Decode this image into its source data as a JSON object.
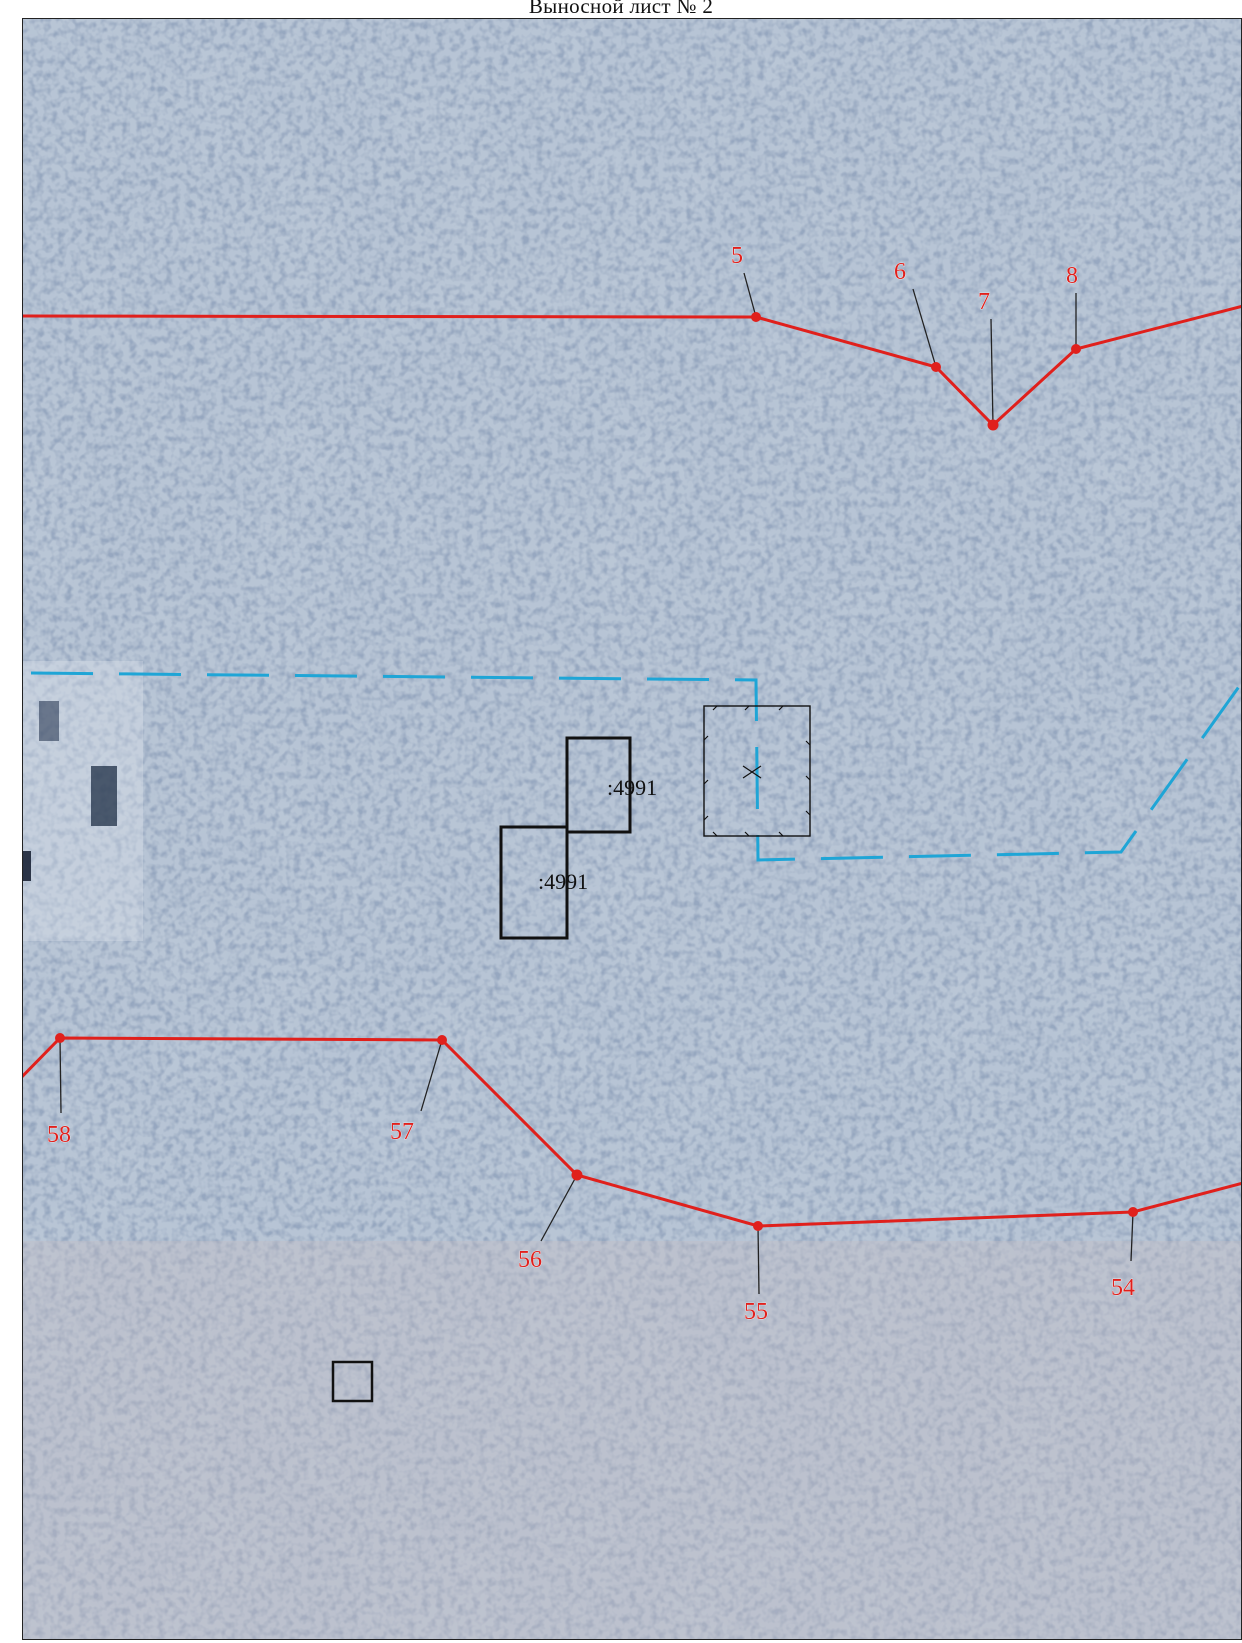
{
  "sheet": {
    "title": "Выносной лист № 2"
  },
  "map": {
    "imagery": "aerial-satellite",
    "colors": {
      "boundary": "#e0201c",
      "boundary_point": "#e0201c",
      "zone_dashed": "#1fa5d6",
      "parcel_outline": "#111111"
    },
    "boundary_points_north": [
      "5",
      "6",
      "7",
      "8"
    ],
    "boundary_points_south": [
      "58",
      "57",
      "56",
      "55",
      "54"
    ],
    "parcels": [
      ":4991",
      ":4991"
    ]
  }
}
